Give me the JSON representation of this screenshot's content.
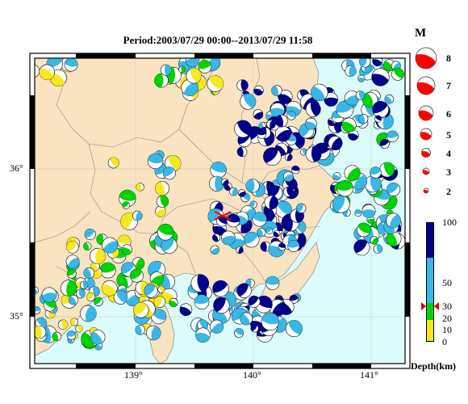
{
  "title": "Period:2003/07/29 00:00--2013/07/29 11:58",
  "lon_ticks": [
    "139°",
    "140°",
    "141°"
  ],
  "lat_ticks": [
    "36°",
    "35°"
  ],
  "magnitude_legend": {
    "title": "M",
    "values": [
      "8",
      "7",
      "6",
      "5",
      "4",
      "3",
      "2"
    ]
  },
  "depth_legend": {
    "title": "Depth(km)",
    "labels": [
      "100",
      "50",
      "30",
      "20",
      "10",
      "0"
    ],
    "colors": [
      "#00008b",
      "#1f3fcf",
      "#39b7e6",
      "#00d400",
      "#f7e81e"
    ]
  },
  "colors": {
    "land": "#fae3c1",
    "sea": "#dcfbfb",
    "event_marker": "#ff0000"
  }
}
